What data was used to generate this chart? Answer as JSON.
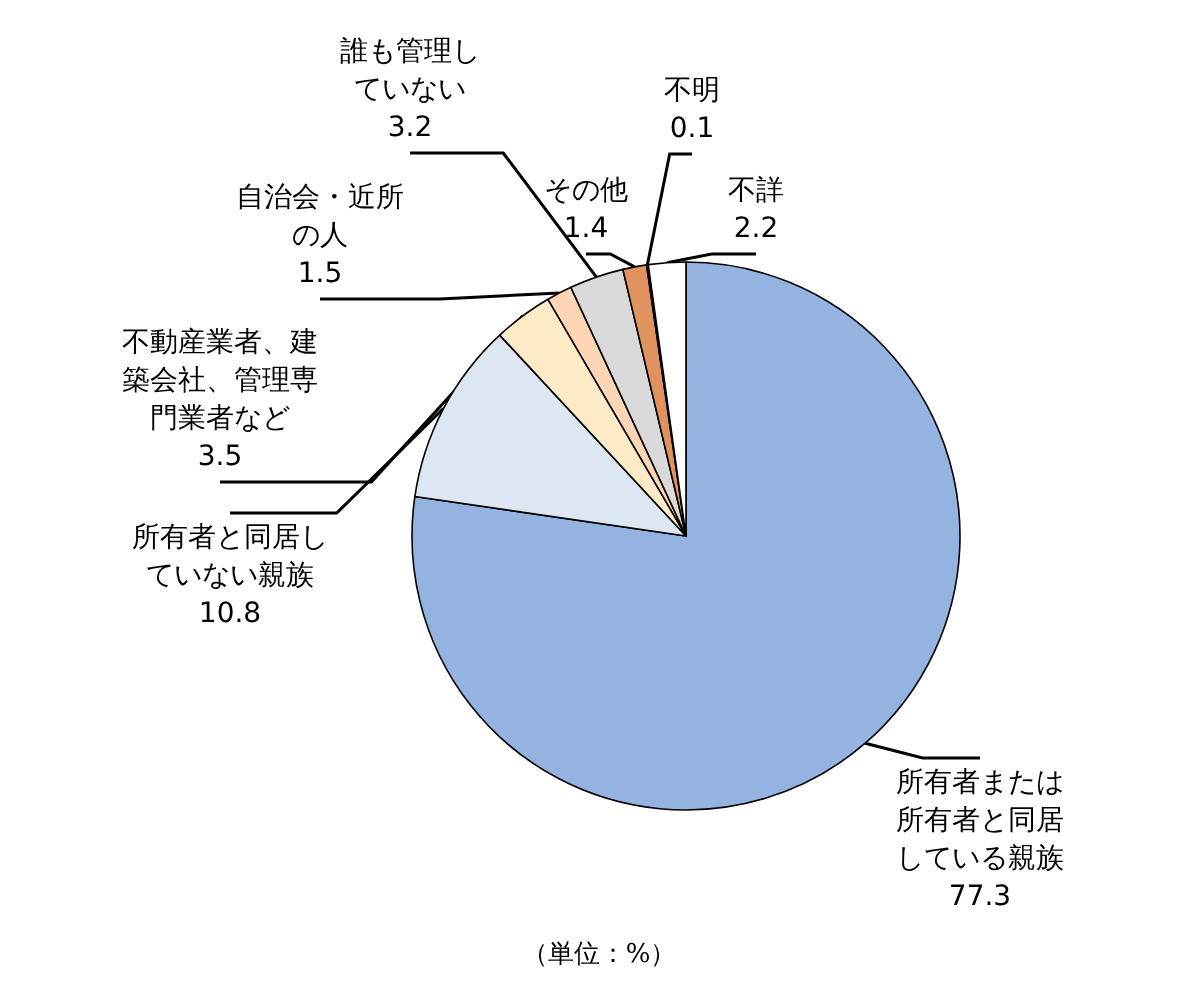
{
  "chart_data": {
    "type": "pie",
    "categories": [
      "所有者または所有者と同居している親族",
      "所有者と同居していない親族",
      "不動産業者、建築会社、管理専門業者など",
      "自治会・近所の人",
      "誰も管理していない",
      "その他",
      "不明",
      "不詳"
    ],
    "values": [
      77.3,
      10.8,
      3.5,
      1.5,
      3.2,
      1.4,
      0.1,
      2.2
    ],
    "colors": [
      "#95b3e0",
      "#dde6f3",
      "#fdebc8",
      "#fcd5b4",
      "#d9d9d9",
      "#e0935e",
      "#7f7f7f",
      "#ffffff"
    ],
    "data_labels": true,
    "legend": false,
    "annotations": [
      "（単位：%）"
    ]
  }
}
